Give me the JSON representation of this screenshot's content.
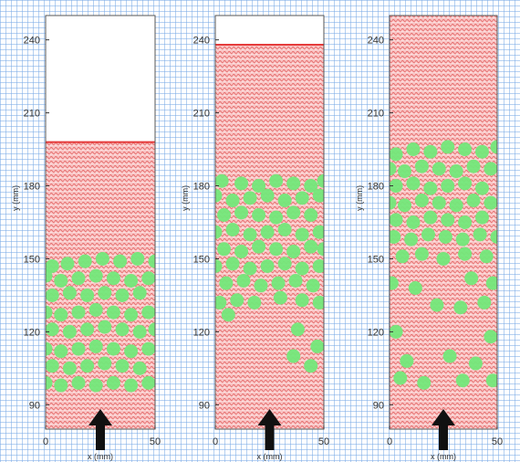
{
  "chart_data": [
    {
      "type": "scatter",
      "title": "",
      "xlabel": "x (mm)",
      "ylabel": "y (mm)",
      "xlim": [
        0,
        50
      ],
      "ylim": [
        80,
        250
      ],
      "x_ticks": [
        "0",
        "50"
      ],
      "y_ticks": [
        "90",
        "120",
        "150",
        "180",
        "210",
        "240"
      ],
      "bed_top_y": 198,
      "particles": [
        [
          3,
          147
        ],
        [
          10,
          148
        ],
        [
          18,
          149
        ],
        [
          26,
          150
        ],
        [
          34,
          149
        ],
        [
          42,
          150
        ],
        [
          50,
          149
        ],
        [
          0,
          143
        ],
        [
          7,
          141
        ],
        [
          15,
          142
        ],
        [
          23,
          143
        ],
        [
          31,
          142
        ],
        [
          39,
          141
        ],
        [
          47,
          142
        ],
        [
          3,
          135
        ],
        [
          11,
          136
        ],
        [
          19,
          135
        ],
        [
          27,
          136
        ],
        [
          35,
          135
        ],
        [
          43,
          136
        ],
        [
          0,
          128
        ],
        [
          7,
          127
        ],
        [
          15,
          128
        ],
        [
          23,
          129
        ],
        [
          31,
          128
        ],
        [
          39,
          127
        ],
        [
          47,
          128
        ],
        [
          3,
          121
        ],
        [
          11,
          120
        ],
        [
          19,
          121
        ],
        [
          27,
          122
        ],
        [
          35,
          121
        ],
        [
          43,
          120
        ],
        [
          50,
          121
        ],
        [
          0,
          113
        ],
        [
          7,
          112
        ],
        [
          15,
          113
        ],
        [
          23,
          114
        ],
        [
          31,
          113
        ],
        [
          39,
          112
        ],
        [
          47,
          113
        ],
        [
          3,
          106
        ],
        [
          11,
          105
        ],
        [
          19,
          106
        ],
        [
          27,
          107
        ],
        [
          35,
          106
        ],
        [
          43,
          105
        ],
        [
          0,
          99
        ],
        [
          7,
          98
        ],
        [
          15,
          99
        ],
        [
          23,
          98
        ],
        [
          31,
          99
        ],
        [
          39,
          98
        ],
        [
          47,
          99
        ]
      ]
    },
    {
      "type": "scatter",
      "title": "",
      "xlabel": "x (mm)",
      "ylabel": "y (mm)",
      "xlim": [
        0,
        50
      ],
      "ylim": [
        80,
        250
      ],
      "x_ticks": [
        "0",
        "50"
      ],
      "y_ticks": [
        "90",
        "120",
        "150",
        "180",
        "210",
        "240"
      ],
      "bed_top_y": 238,
      "particles": [
        [
          3,
          182
        ],
        [
          12,
          181
        ],
        [
          20,
          180
        ],
        [
          28,
          182
        ],
        [
          36,
          181
        ],
        [
          44,
          180
        ],
        [
          50,
          182
        ],
        [
          0,
          176
        ],
        [
          8,
          174
        ],
        [
          16,
          175
        ],
        [
          24,
          176
        ],
        [
          32,
          174
        ],
        [
          40,
          175
        ],
        [
          48,
          176
        ],
        [
          4,
          168
        ],
        [
          12,
          169
        ],
        [
          20,
          168
        ],
        [
          28,
          167
        ],
        [
          36,
          169
        ],
        [
          44,
          168
        ],
        [
          0,
          161
        ],
        [
          8,
          162
        ],
        [
          16,
          160
        ],
        [
          24,
          161
        ],
        [
          32,
          162
        ],
        [
          40,
          160
        ],
        [
          48,
          161
        ],
        [
          4,
          154
        ],
        [
          12,
          153
        ],
        [
          20,
          155
        ],
        [
          28,
          154
        ],
        [
          36,
          153
        ],
        [
          44,
          155
        ],
        [
          50,
          154
        ],
        [
          0,
          147
        ],
        [
          8,
          148
        ],
        [
          16,
          146
        ],
        [
          24,
          147
        ],
        [
          32,
          148
        ],
        [
          40,
          146
        ],
        [
          48,
          147
        ],
        [
          5,
          140
        ],
        [
          13,
          141
        ],
        [
          21,
          139
        ],
        [
          29,
          140
        ],
        [
          37,
          141
        ],
        [
          45,
          139
        ],
        [
          2,
          132
        ],
        [
          10,
          133
        ],
        [
          18,
          132
        ],
        [
          30,
          134
        ],
        [
          40,
          133
        ],
        [
          48,
          132
        ],
        [
          6,
          127
        ],
        [
          38,
          121
        ],
        [
          47,
          114
        ],
        [
          36,
          110
        ],
        [
          44,
          106
        ]
      ]
    },
    {
      "type": "scatter",
      "title": "",
      "xlabel": "x (mm)",
      "ylabel": "y (mm)",
      "xlim": [
        0,
        50
      ],
      "ylim": [
        80,
        250
      ],
      "x_ticks": [
        "0",
        "50"
      ],
      "y_ticks": [
        "90",
        "120",
        "150",
        "180",
        "210",
        "240"
      ],
      "bed_top_y": 250,
      "particles": [
        [
          3,
          193
        ],
        [
          11,
          195
        ],
        [
          19,
          194
        ],
        [
          27,
          196
        ],
        [
          35,
          195
        ],
        [
          43,
          194
        ],
        [
          50,
          196
        ],
        [
          0,
          187
        ],
        [
          7,
          186
        ],
        [
          15,
          188
        ],
        [
          23,
          187
        ],
        [
          31,
          186
        ],
        [
          39,
          188
        ],
        [
          47,
          187
        ],
        [
          3,
          180
        ],
        [
          11,
          181
        ],
        [
          19,
          179
        ],
        [
          27,
          180
        ],
        [
          35,
          181
        ],
        [
          43,
          179
        ],
        [
          0,
          173
        ],
        [
          7,
          172
        ],
        [
          15,
          174
        ],
        [
          23,
          173
        ],
        [
          31,
          172
        ],
        [
          39,
          174
        ],
        [
          47,
          173
        ],
        [
          3,
          166
        ],
        [
          11,
          165
        ],
        [
          19,
          167
        ],
        [
          27,
          166
        ],
        [
          35,
          165
        ],
        [
          43,
          167
        ],
        [
          2,
          159
        ],
        [
          10,
          158
        ],
        [
          18,
          160
        ],
        [
          26,
          159
        ],
        [
          34,
          158
        ],
        [
          42,
          160
        ],
        [
          50,
          159
        ],
        [
          6,
          151
        ],
        [
          15,
          152
        ],
        [
          25,
          150
        ],
        [
          35,
          152
        ],
        [
          45,
          151
        ],
        [
          1,
          140
        ],
        [
          12,
          138
        ],
        [
          38,
          142
        ],
        [
          48,
          140
        ],
        [
          22,
          131
        ],
        [
          33,
          130
        ],
        [
          44,
          132
        ],
        [
          3,
          120
        ],
        [
          47,
          118
        ],
        [
          8,
          108
        ],
        [
          28,
          110
        ],
        [
          40,
          107
        ],
        [
          5,
          101
        ],
        [
          16,
          99
        ],
        [
          34,
          100
        ],
        [
          48,
          100
        ]
      ]
    }
  ]
}
